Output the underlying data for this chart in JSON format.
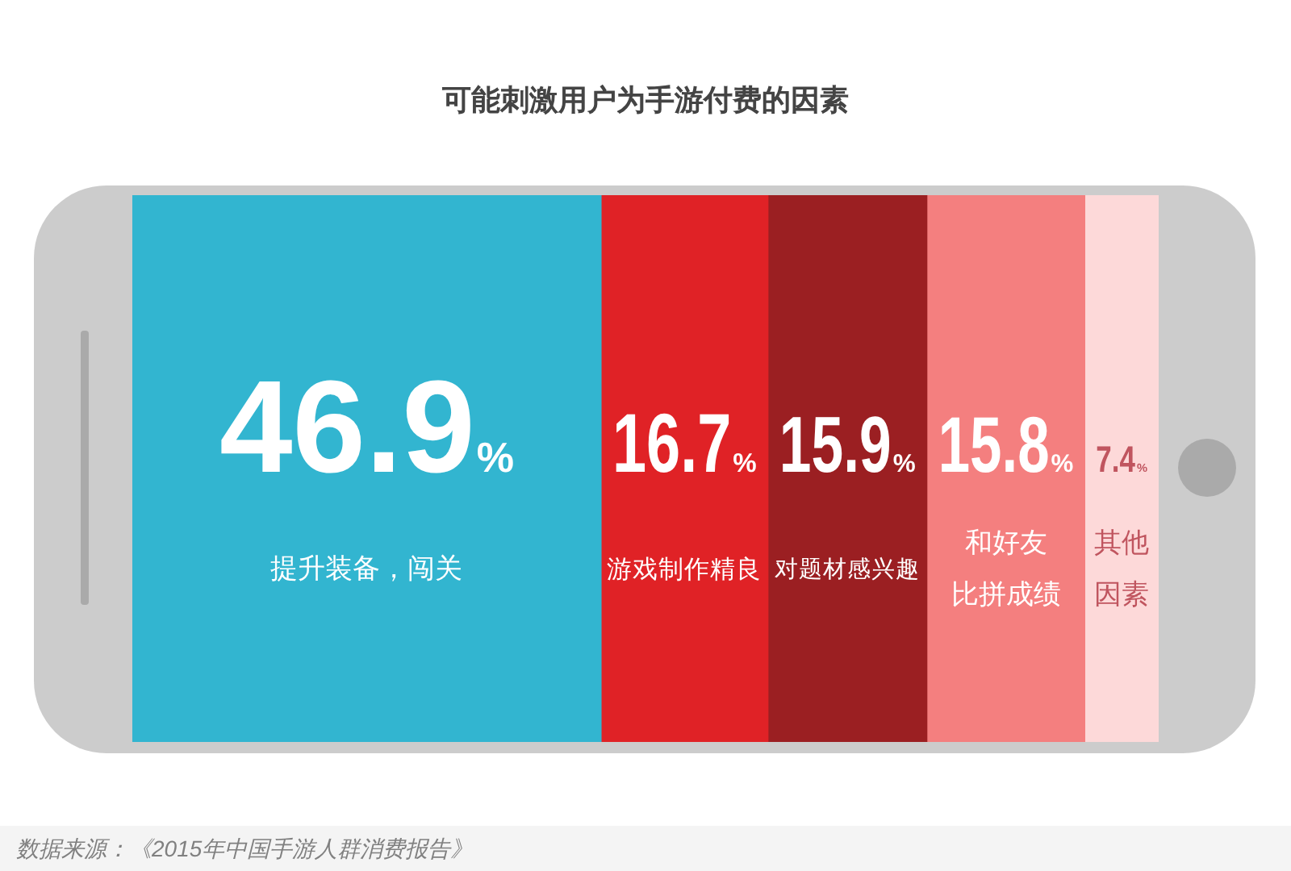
{
  "chart_data": {
    "type": "bar",
    "title": "可能刺激用户为手游付费的因素",
    "orientation": "horizontal",
    "stacked": true,
    "categories": [
      null
    ],
    "series": [
      {
        "name": "提升装备，闯关",
        "color": "#32b5d0",
        "values": [
          46.9
        ],
        "value_labels": [
          "46.9%"
        ]
      },
      {
        "name": "游戏制作精良",
        "color": "#e02226",
        "values": [
          16.7
        ],
        "value_labels": [
          "16.7%"
        ]
      },
      {
        "name": "对题材感兴趣",
        "color": "#9b1f22",
        "values": [
          15.9
        ],
        "value_labels": [
          "15.9%"
        ]
      },
      {
        "name": "和好友比拼成绩",
        "color": "#f47f7f",
        "values": [
          15.8
        ],
        "value_labels": [
          "15.8%"
        ]
      },
      {
        "name": "其他因素",
        "color": "#fdd9d9",
        "values": [
          7.4
        ],
        "value_labels": [
          "7.4%"
        ]
      }
    ],
    "tick_labels": false,
    "annotations": [
      "数据来源：《2015年中国手游人群消费报告》"
    ]
  }
}
